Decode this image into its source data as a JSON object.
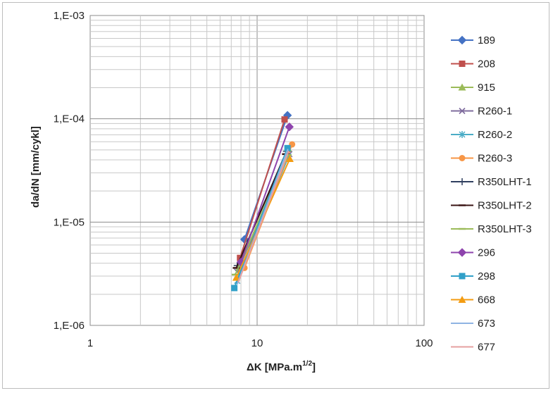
{
  "chart_data": {
    "type": "scatter",
    "title": "",
    "xlabel": "ΔK [MPa.m",
    "xlabel_sup": "1/2",
    "xlabel_suffix": "]",
    "ylabel": "da/dN [mm/cykl]",
    "x_scale": "log",
    "y_scale": "log",
    "xlim": [
      1,
      100
    ],
    "ylim": [
      1e-06,
      0.001
    ],
    "x_tick_labels": [
      "1",
      "10",
      "100"
    ],
    "y_tick_labels": [
      "1,E-06",
      "1,E-05",
      "1,E-04",
      "1,E-03"
    ],
    "grid": true,
    "legend_position": "right",
    "series": [
      {
        "name": "189",
        "color": "#4472c4",
        "marker": "diamond",
        "x": [
          8.4,
          15.2
        ],
        "y": [
          6.8e-06,
          0.000108
        ]
      },
      {
        "name": "208",
        "color": "#c0504d",
        "marker": "square",
        "x": [
          7.9,
          14.6
        ],
        "y": [
          4.5e-06,
          9.85e-05
        ]
      },
      {
        "name": "915",
        "color": "#9bbb59",
        "marker": "triangle",
        "x": [
          7.8,
          15.4
        ],
        "y": [
          3.6e-06,
          5.1e-05
        ]
      },
      {
        "name": "R260-1",
        "color": "#7f6c9e",
        "marker": "x",
        "x": [
          7.6,
          15.6
        ],
        "y": [
          3.3e-06,
          4.55e-05
        ]
      },
      {
        "name": "R260-2",
        "color": "#4bacc6",
        "marker": "star",
        "x": [
          7.6,
          15.4
        ],
        "y": [
          2.7e-06,
          4.3e-05
        ]
      },
      {
        "name": "R260-3",
        "color": "#f79646",
        "marker": "circle",
        "x": [
          8.4,
          16.2
        ],
        "y": [
          3.6e-06,
          5.65e-05
        ]
      },
      {
        "name": "R350LHT-1",
        "color": "#2f3f5f",
        "marker": "plus",
        "x": [
          7.6,
          15.0
        ],
        "y": [
          3.8e-06,
          4.85e-05
        ]
      },
      {
        "name": "R350LHT-2",
        "color": "#3a1414",
        "marker": "dash",
        "x": [
          7.5,
          14.8
        ],
        "y": [
          3.6e-06,
          4.55e-05
        ]
      },
      {
        "name": "R350LHT-3",
        "color": "#9bbb59",
        "marker": "dash",
        "x": [
          7.4,
          15.3
        ],
        "y": [
          3.1e-06,
          4.45e-05
        ]
      },
      {
        "name": "296",
        "color": "#8e44ad",
        "marker": "diamond",
        "x": [
          8.0,
          15.6
        ],
        "y": [
          4.1e-06,
          8.35e-05
        ]
      },
      {
        "name": "298",
        "color": "#31a0c8",
        "marker": "square",
        "x": [
          7.3,
          15.2
        ],
        "y": [
          2.3e-06,
          5.2e-05
        ]
      },
      {
        "name": "668",
        "color": "#f39c12",
        "marker": "triangle",
        "x": [
          7.5,
          15.7
        ],
        "y": [
          2.9e-06,
          4.1e-05
        ]
      },
      {
        "name": "673",
        "color": "#8fb4e3",
        "marker": "none",
        "x": [
          7.6,
          15.3
        ],
        "y": [
          2.5e-06,
          5.1e-05
        ]
      },
      {
        "name": "677",
        "color": "#e6a0a0",
        "marker": "none",
        "x": [
          7.7,
          15.5
        ],
        "y": [
          2.6e-06,
          4.9e-05
        ]
      }
    ]
  }
}
